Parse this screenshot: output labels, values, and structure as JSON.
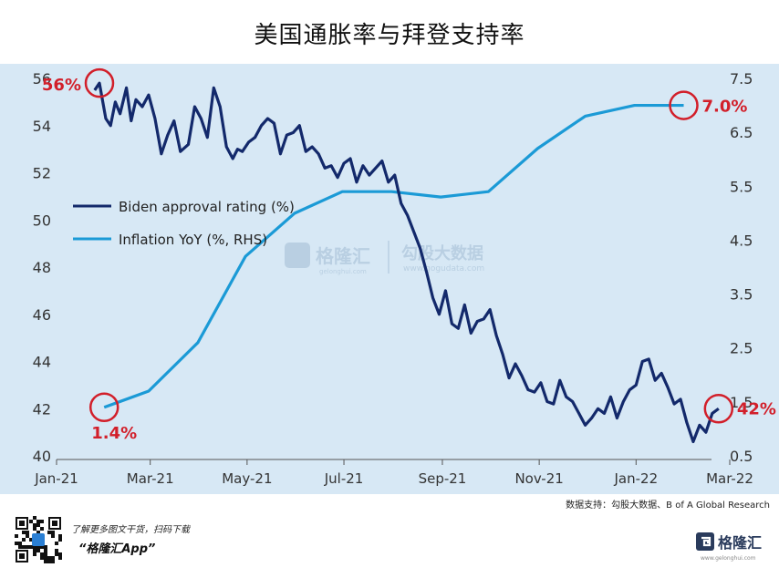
{
  "title": "美国通胀率与拜登支持率",
  "source_note": "数据支持：勾股大数据、B of A Global Research",
  "footer": {
    "line1": "了解更多图文干货，扫码下载",
    "line2": "“格隆汇App”",
    "brand": "格隆汇",
    "brand_sub": "www.gelonghui.com"
  },
  "watermarks": {
    "left_name": "格隆汇",
    "left_url": "gelonghui.com",
    "right_name": "勾股大数据",
    "right_url": "www.gogudata.com"
  },
  "colors": {
    "approval_line": "#13296b",
    "inflation_line": "#1b9ad6",
    "plot_bg": "#d7e8f5",
    "highlight": "#d21f2a",
    "axis_text": "#333333"
  },
  "chart_data": {
    "type": "line",
    "title": "美国通胀率与拜登支持率",
    "x_tick_labels": [
      "Jan-21",
      "Mar-21",
      "May-21",
      "Jul-21",
      "Sep-21",
      "Nov-21",
      "Jan-22",
      "Mar-22"
    ],
    "ylim_left": [
      40,
      56
    ],
    "yticks_left": [
      "40",
      "42",
      "44",
      "46",
      "48",
      "50",
      "52",
      "54",
      "56"
    ],
    "ylim_right": [
      0.5,
      7.5
    ],
    "yticks_right": [
      "0.5",
      "1.5",
      "2.5",
      "3.5",
      "4.5",
      "5.5",
      "6.5",
      "7.5"
    ],
    "legend_position": "middle-left",
    "grid": false,
    "series": [
      {
        "name": "Biden approval rating (%)",
        "axis": "left",
        "x": [
          "2021-01-25",
          "2021-01-28",
          "2021-02-01",
          "2021-02-04",
          "2021-02-07",
          "2021-02-10",
          "2021-02-14",
          "2021-02-17",
          "2021-02-20",
          "2021-02-24",
          "2021-02-28",
          "2021-03-04",
          "2021-03-08",
          "2021-03-12",
          "2021-03-16",
          "2021-03-20",
          "2021-03-25",
          "2021-03-29",
          "2021-04-02",
          "2021-04-06",
          "2021-04-10",
          "2021-04-14",
          "2021-04-18",
          "2021-04-22",
          "2021-04-25",
          "2021-04-28",
          "2021-05-02",
          "2021-05-06",
          "2021-05-10",
          "2021-05-14",
          "2021-05-18",
          "2021-05-22",
          "2021-05-26",
          "2021-05-30",
          "2021-06-03",
          "2021-06-07",
          "2021-06-11",
          "2021-06-15",
          "2021-06-19",
          "2021-06-23",
          "2021-06-27",
          "2021-07-01",
          "2021-07-05",
          "2021-07-09",
          "2021-07-13",
          "2021-07-17",
          "2021-07-21",
          "2021-07-25",
          "2021-07-29",
          "2021-08-02",
          "2021-08-06",
          "2021-08-10",
          "2021-08-14",
          "2021-08-18",
          "2021-08-22",
          "2021-08-26",
          "2021-08-30",
          "2021-09-03",
          "2021-09-07",
          "2021-09-11",
          "2021-09-15",
          "2021-09-19",
          "2021-09-23",
          "2021-09-27",
          "2021-10-01",
          "2021-10-05",
          "2021-10-09",
          "2021-10-13",
          "2021-10-17",
          "2021-10-21",
          "2021-10-25",
          "2021-10-29",
          "2021-11-02",
          "2021-11-06",
          "2021-11-10",
          "2021-11-14",
          "2021-11-18",
          "2021-11-22",
          "2021-11-26",
          "2021-11-30",
          "2021-12-04",
          "2021-12-08",
          "2021-12-12",
          "2021-12-16",
          "2021-12-20",
          "2021-12-24",
          "2021-12-28",
          "2022-01-01",
          "2022-01-05",
          "2022-01-09",
          "2022-01-13",
          "2022-01-17",
          "2022-01-21",
          "2022-01-25",
          "2022-01-29",
          "2022-02-02",
          "2022-02-06",
          "2022-02-10",
          "2022-02-14",
          "2022-02-18",
          "2022-02-22"
        ],
        "y": [
          55.5,
          55.8,
          54.3,
          54.0,
          55.0,
          54.5,
          55.6,
          54.2,
          55.1,
          54.8,
          55.3,
          54.3,
          52.8,
          53.6,
          54.2,
          52.9,
          53.2,
          54.8,
          54.3,
          53.5,
          55.6,
          54.8,
          53.1,
          52.6,
          53.0,
          52.9,
          53.3,
          53.5,
          54.0,
          54.3,
          54.1,
          52.8,
          53.6,
          53.7,
          54.0,
          52.9,
          53.1,
          52.8,
          52.2,
          52.3,
          51.8,
          52.4,
          52.6,
          51.6,
          52.3,
          51.9,
          52.2,
          52.5,
          51.6,
          51.9,
          50.7,
          50.2,
          49.5,
          48.8,
          47.8,
          46.7,
          46.0,
          47.0,
          45.6,
          45.4,
          46.4,
          45.2,
          45.7,
          45.8,
          46.2,
          45.1,
          44.3,
          43.3,
          43.9,
          43.4,
          42.8,
          42.7,
          43.1,
          42.3,
          42.2,
          43.2,
          42.5,
          42.3,
          41.8,
          41.3,
          41.6,
          42.0,
          41.8,
          42.5,
          41.6,
          42.3,
          42.8,
          43.0,
          44.0,
          44.1,
          43.2,
          43.5,
          42.9,
          42.2,
          42.4,
          41.4,
          40.6,
          41.3,
          41.0,
          41.8,
          42.0
        ]
      },
      {
        "name": "Inflation YoY (%, RHS)",
        "axis": "right",
        "x": [
          "2021-01-31",
          "2021-02-28",
          "2021-03-31",
          "2021-04-30",
          "2021-05-31",
          "2021-06-30",
          "2021-07-31",
          "2021-08-31",
          "2021-09-30",
          "2021-10-31",
          "2021-11-30",
          "2021-12-31",
          "2022-01-31"
        ],
        "y": [
          1.4,
          1.7,
          2.6,
          4.2,
          5.0,
          5.4,
          5.4,
          5.3,
          5.4,
          6.2,
          6.8,
          7.0,
          7.0
        ]
      }
    ],
    "annotations": [
      {
        "text": "56%",
        "series": "Biden approval rating (%)",
        "x": "2021-01-28",
        "y": 55.8
      },
      {
        "text": "42%",
        "series": "Biden approval rating (%)",
        "x": "2022-02-22",
        "y": 42.0
      },
      {
        "text": "1.4%",
        "series": "Inflation YoY (%, RHS)",
        "x": "2021-01-31",
        "y": 1.4
      },
      {
        "text": "7.0%",
        "series": "Inflation YoY (%, RHS)",
        "x": "2022-01-31",
        "y": 7.0
      }
    ]
  }
}
